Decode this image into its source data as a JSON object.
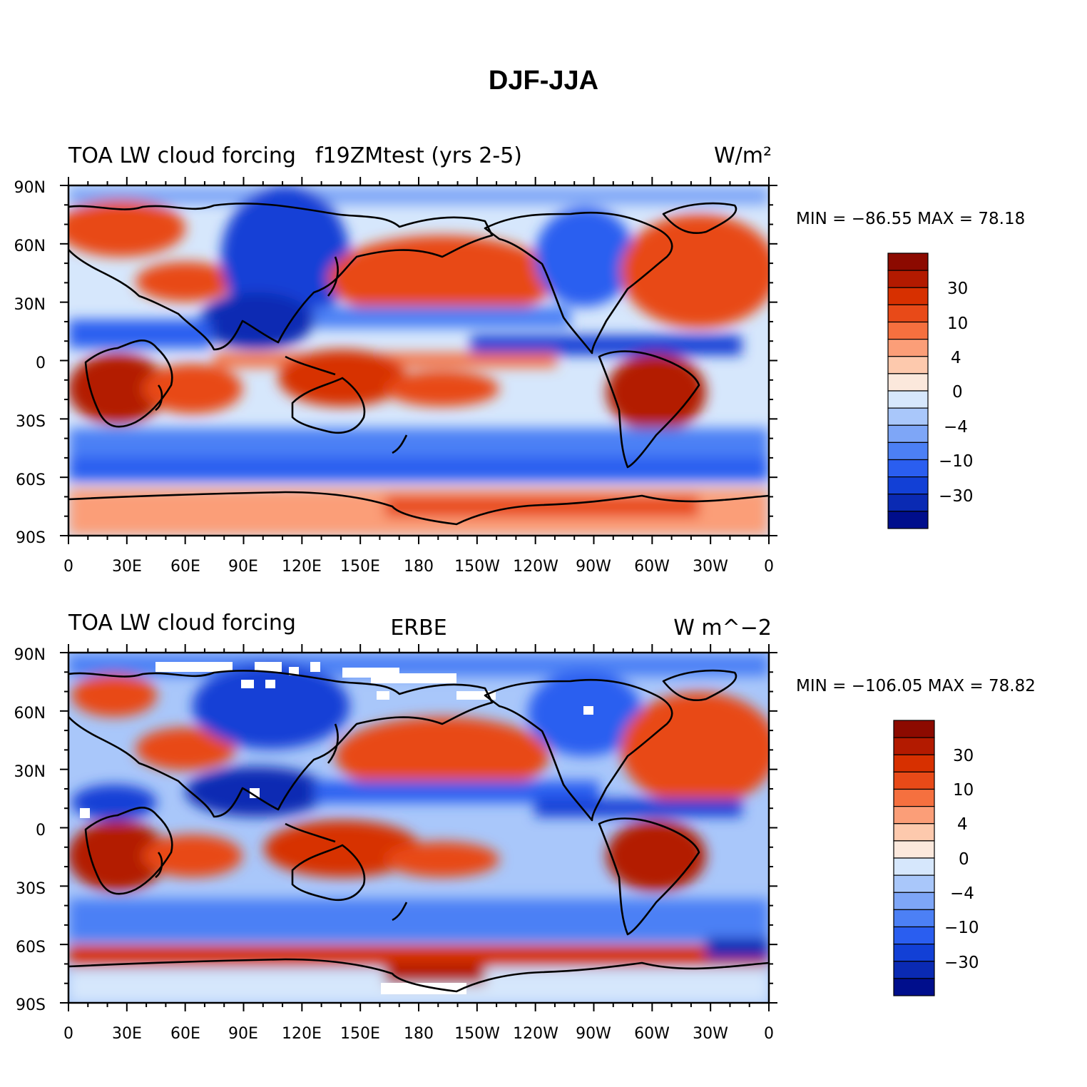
{
  "title": "DJF-JJA",
  "panels": [
    {
      "left_label": "TOA LW cloud forcing",
      "center_label": "f19ZMtest (yrs 2-5)",
      "right_label": "W/m²",
      "min_max": "MIN = −86.55 MAX =  78.18",
      "lat_ticks": [
        "90N",
        "60N",
        "30N",
        "0",
        "30S",
        "60S",
        "90S"
      ],
      "lon_ticks": [
        "0",
        "30E",
        "60E",
        "90E",
        "120E",
        "150E",
        "180",
        "150W",
        "120W",
        "90W",
        "60W",
        "30W",
        "0"
      ],
      "colorbar_labels": [
        "30",
        "10",
        "4",
        "0",
        "−4",
        "−10",
        "−30"
      ]
    },
    {
      "left_label": "TOA LW cloud forcing",
      "center_label": "ERBE",
      "right_label": "W m^−2",
      "min_max": "MIN = −106.05 MAX =  78.82",
      "lat_ticks": [
        "90N",
        "60N",
        "30N",
        "0",
        "30S",
        "60S",
        "90S"
      ],
      "lon_ticks": [
        "0",
        "30E",
        "60E",
        "90E",
        "120E",
        "150E",
        "180",
        "150W",
        "120W",
        "90W",
        "60W",
        "30W",
        "0"
      ],
      "colorbar_labels": [
        "30",
        "10",
        "4",
        "0",
        "−4",
        "−10",
        "−30"
      ]
    }
  ],
  "colormap": [
    "#000e8c",
    "#0a2ab3",
    "#1240d6",
    "#2a5ef0",
    "#4c80f5",
    "#7ea6f7",
    "#a9c7fa",
    "#d6e7fc",
    "#fbe8dc",
    "#fdc9ad",
    "#fb9e78",
    "#f5703f",
    "#e84a18",
    "#d73000",
    "#b31a00",
    "#8c0a00"
  ],
  "map_colors": {
    "coast": "#000000",
    "missing": "#ffffff"
  }
}
